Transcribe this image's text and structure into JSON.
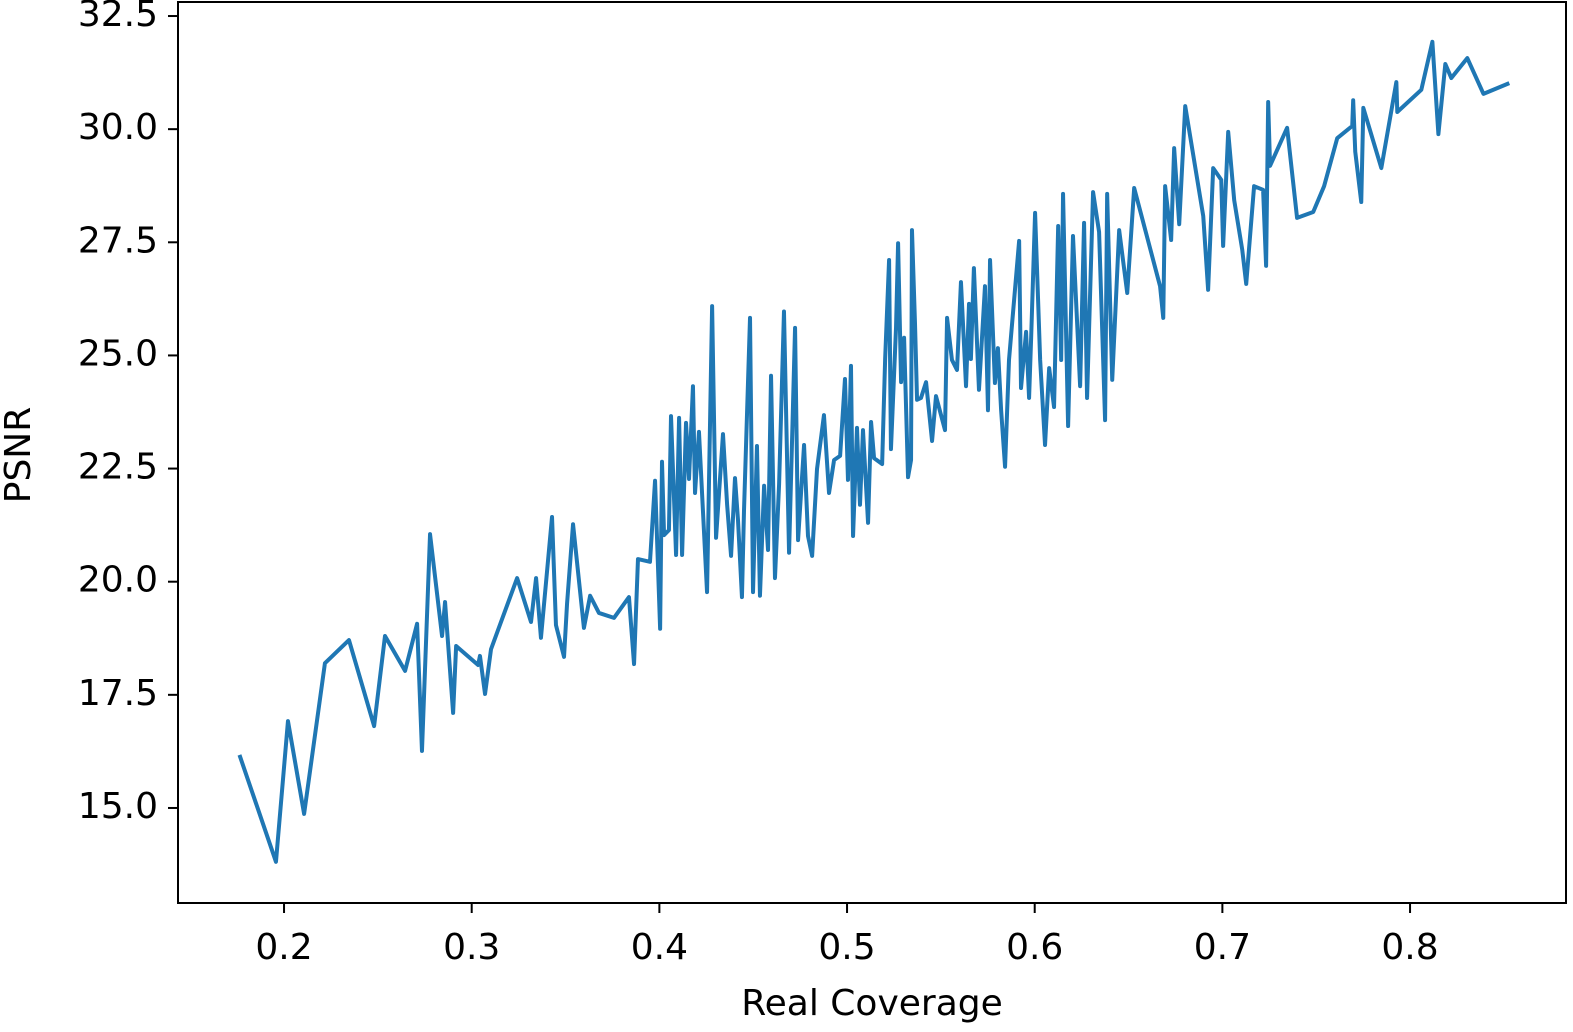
{
  "chart_data": {
    "type": "line",
    "xlabel": "Real Coverage",
    "ylabel": "PSNR",
    "color": "#1f77b4",
    "xlim": [
      0.1435,
      0.8831
    ],
    "ylim": [
      12.9,
      32.81
    ],
    "xticks": [
      0.2,
      0.3,
      0.4,
      0.5,
      0.6,
      0.7,
      0.8
    ],
    "yticks": [
      {
        "value": 15,
        "label": "15.0"
      },
      17.5,
      {
        "value": 20,
        "label": "20.0"
      },
      22.5,
      {
        "value": 25,
        "label": "25.0"
      },
      27.5,
      {
        "value": 30,
        "label": "30.0"
      },
      32.5
    ],
    "grid": false,
    "x": [
      0.1766,
      0.1957,
      0.2021,
      0.2107,
      0.2218,
      0.2346,
      0.248,
      0.2538,
      0.2645,
      0.2709,
      0.2735,
      0.2778,
      0.2842,
      0.2858,
      0.2901,
      0.2917,
      0.3034,
      0.3044,
      0.3071,
      0.3103,
      0.3242,
      0.3316,
      0.3343,
      0.3369,
      0.3428,
      0.3449,
      0.3492,
      0.3508,
      0.354,
      0.3598,
      0.3631,
      0.3678,
      0.3758,
      0.3838,
      0.3865,
      0.3886,
      0.395,
      0.3977,
      0.4004,
      0.4014,
      0.4025,
      0.4051,
      0.4062,
      0.4089,
      0.4105,
      0.4121,
      0.4142,
      0.4158,
      0.4179,
      0.419,
      0.4211,
      0.4254,
      0.4281,
      0.4302,
      0.4339,
      0.4361,
      0.4382,
      0.4403,
      0.4419,
      0.444,
      0.4451,
      0.4483,
      0.4499,
      0.452,
      0.4536,
      0.4558,
      0.4579,
      0.4595,
      0.4616,
      0.4638,
      0.4664,
      0.4691,
      0.4723,
      0.4739,
      0.4771,
      0.4792,
      0.4814,
      0.484,
      0.4877,
      0.4904,
      0.4931,
      0.4963,
      0.4989,
      0.5005,
      0.5021,
      0.5032,
      0.5053,
      0.5069,
      0.5085,
      0.5112,
      0.5128,
      0.5144,
      0.5187,
      0.5203,
      0.5224,
      0.5234,
      0.5261,
      0.5272,
      0.5288,
      0.5304,
      0.5325,
      0.5341,
      0.5346,
      0.5362,
      0.5373,
      0.5394,
      0.5421,
      0.5453,
      0.5474,
      0.5522,
      0.5533,
      0.5559,
      0.5586,
      0.5607,
      0.5634,
      0.565,
      0.566,
      0.5676,
      0.5703,
      0.5735,
      0.5751,
      0.5762,
      0.5788,
      0.5804,
      0.5821,
      0.5842,
      0.5863,
      0.5917,
      0.5927,
      0.5954,
      0.597,
      0.5981,
      0.6002,
      0.6029,
      0.6055,
      0.6077,
      0.6103,
      0.6125,
      0.6141,
      0.6151,
      0.6178,
      0.6204,
      0.6242,
      0.6263,
      0.6279,
      0.6311,
      0.6343,
      0.6375,
      0.6386,
      0.6413,
      0.645,
      0.6493,
      0.653,
      0.6668,
      0.6685,
      0.6695,
      0.6727,
      0.6743,
      0.677,
      0.6802,
      0.6898,
      0.6924,
      0.6951,
      0.6994,
      0.7004,
      0.7031,
      0.7063,
      0.7106,
      0.7127,
      0.7169,
      0.7217,
      0.7233,
      0.7244,
      0.7254,
      0.7345,
      0.7398,
      0.7484,
      0.7542,
      0.7612,
      0.7692,
      0.7697,
      0.7708,
      0.774,
      0.7751,
      0.7847,
      0.7927,
      0.7932,
      0.806,
      0.8119,
      0.8151,
      0.8188,
      0.822,
      0.8305,
      0.8391,
      0.8519
    ],
    "values": [
      16.13,
      13.81,
      16.92,
      14.87,
      18.2,
      18.71,
      16.81,
      18.8,
      18.03,
      19.07,
      16.26,
      21.05,
      18.8,
      19.55,
      17.1,
      18.58,
      18.16,
      18.36,
      17.52,
      18.51,
      20.08,
      19.11,
      20.08,
      18.76,
      21.43,
      19.04,
      18.34,
      19.51,
      21.27,
      18.98,
      19.69,
      19.31,
      19.2,
      19.66,
      18.18,
      20.5,
      20.44,
      22.23,
      18.96,
      22.65,
      21.03,
      21.14,
      23.66,
      20.59,
      23.62,
      20.59,
      23.51,
      22.27,
      24.32,
      21.96,
      23.31,
      19.77,
      26.09,
      20.97,
      23.26,
      21.7,
      20.57,
      22.29,
      21.36,
      19.66,
      21.58,
      25.83,
      19.77,
      23.0,
      19.69,
      22.12,
      20.7,
      24.55,
      20.08,
      22.16,
      25.97,
      20.64,
      25.61,
      20.92,
      23.02,
      21.01,
      20.57,
      22.49,
      23.68,
      21.96,
      22.69,
      22.78,
      24.48,
      22.25,
      24.77,
      21.01,
      23.4,
      21.7,
      23.35,
      21.3,
      23.53,
      22.73,
      22.6,
      24.92,
      27.11,
      22.93,
      25.61,
      27.48,
      24.41,
      25.39,
      22.31,
      22.69,
      27.77,
      25.72,
      24.02,
      24.06,
      24.41,
      23.11,
      24.1,
      23.35,
      25.83,
      24.9,
      24.68,
      26.62,
      24.32,
      26.14,
      24.92,
      26.93,
      24.24,
      26.53,
      23.79,
      27.11,
      24.39,
      25.16,
      23.79,
      22.54,
      24.9,
      27.53,
      24.28,
      25.52,
      24.06,
      25.39,
      28.15,
      24.9,
      23.02,
      24.72,
      23.86,
      27.86,
      24.9,
      28.57,
      23.44,
      27.64,
      24.32,
      27.93,
      24.06,
      28.61,
      27.73,
      23.57,
      28.57,
      24.46,
      27.77,
      26.38,
      28.7,
      26.53,
      25.83,
      28.74,
      27.55,
      29.58,
      27.9,
      30.51,
      28.08,
      26.45,
      29.14,
      28.88,
      27.42,
      29.94,
      28.43,
      27.33,
      26.58,
      28.74,
      28.66,
      26.98,
      30.6,
      29.19,
      30.03,
      28.04,
      28.17,
      28.74,
      29.8,
      30.07,
      30.64,
      29.5,
      28.39,
      30.47,
      29.14,
      31.04,
      30.38,
      30.87,
      31.93,
      29.89,
      31.44,
      31.13,
      31.57,
      30.78,
      31.0
    ]
  }
}
